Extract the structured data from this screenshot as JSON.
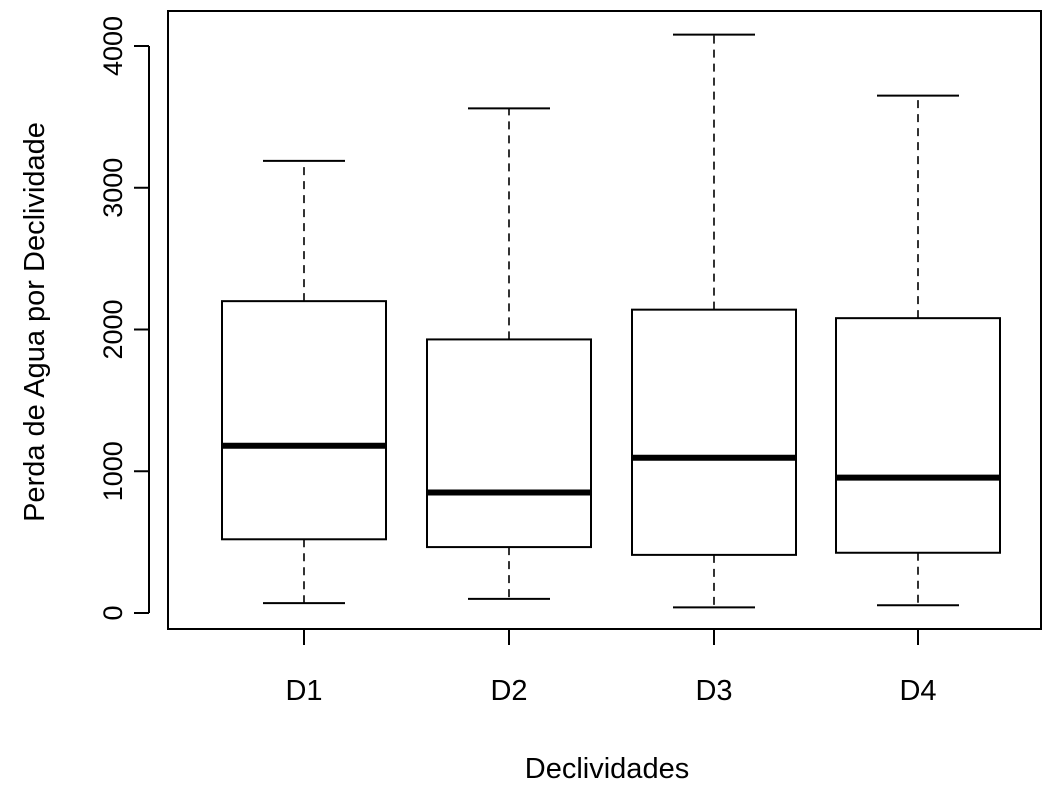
{
  "chart_data": {
    "type": "box",
    "xlabel": "Declividades",
    "ylabel": "Perda de Agua por Declividade",
    "categories": [
      "D1",
      "D2",
      "D3",
      "D4"
    ],
    "ylim": [
      -120,
      4240
    ],
    "yticks": [
      0,
      1000,
      2000,
      3000,
      4000
    ],
    "ytick_labels": [
      "0",
      "1000",
      "2000",
      "3000",
      "4000"
    ],
    "boxes": [
      {
        "label": "D1",
        "min": 70,
        "q1": 520,
        "median": 1180,
        "q3": 2200,
        "max": 3190
      },
      {
        "label": "D2",
        "min": 100,
        "q1": 465,
        "median": 850,
        "q3": 1930,
        "max": 3560
      },
      {
        "label": "D3",
        "min": 40,
        "q1": 410,
        "median": 1095,
        "q3": 2140,
        "max": 4080
      },
      {
        "label": "D4",
        "min": 55,
        "q1": 425,
        "median": 955,
        "q3": 2080,
        "max": 3650
      }
    ],
    "grid": false,
    "legend": "none"
  }
}
